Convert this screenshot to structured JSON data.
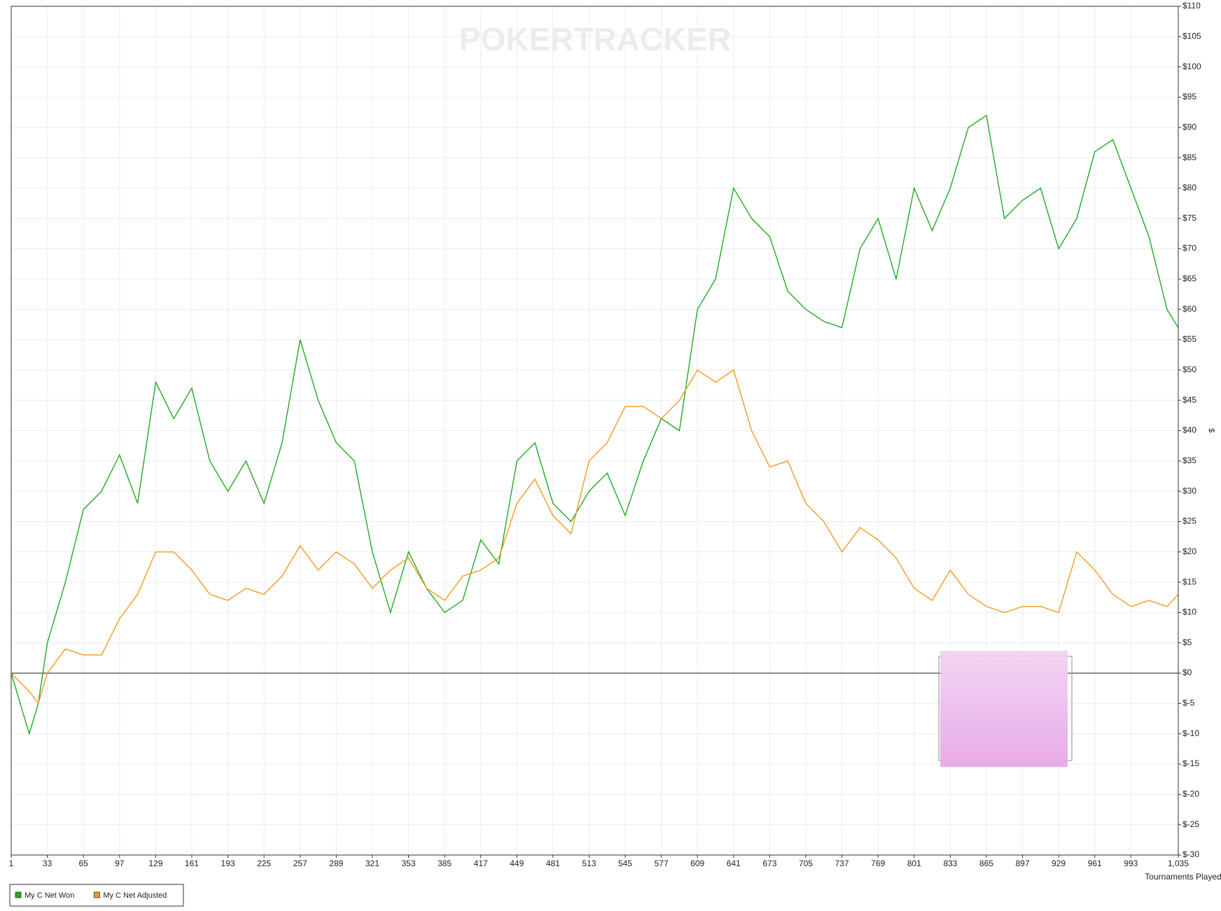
{
  "chart_data": {
    "type": "line",
    "watermark": "POKERTRACKER",
    "x_label": "Tournaments Played",
    "y_label": "$",
    "grid": true,
    "xlim": [
      1,
      1035
    ],
    "xticks": [
      1,
      33,
      65,
      97,
      129,
      161,
      193,
      225,
      257,
      289,
      321,
      353,
      385,
      417,
      449,
      481,
      513,
      545,
      577,
      609,
      641,
      673,
      705,
      737,
      769,
      801,
      833,
      865,
      897,
      929,
      961,
      993,
      {
        "value": 1035,
        "label": "1,035"
      }
    ],
    "ylim": [
      -30,
      110
    ],
    "yticks": [
      {
        "value": -30,
        "label": "$-30"
      },
      {
        "value": -25,
        "label": "$-25"
      },
      {
        "value": -20,
        "label": "$-20"
      },
      {
        "value": -15,
        "label": "$-15"
      },
      {
        "value": -10,
        "label": "$-10"
      },
      {
        "value": -5,
        "label": "$-5"
      },
      {
        "value": 0,
        "label": "$0"
      },
      {
        "value": 5,
        "label": "$5"
      },
      {
        "value": 10,
        "label": "$10"
      },
      {
        "value": 15,
        "label": "$15"
      },
      {
        "value": 20,
        "label": "$20"
      },
      {
        "value": 25,
        "label": "$25"
      },
      {
        "value": 30,
        "label": "$30"
      },
      {
        "value": 35,
        "label": "$35"
      },
      {
        "value": 40,
        "label": "$40"
      },
      {
        "value": 45,
        "label": "$45"
      },
      {
        "value": 50,
        "label": "$50"
      },
      {
        "value": 55,
        "label": "$55"
      },
      {
        "value": 60,
        "label": "$60"
      },
      {
        "value": 65,
        "label": "$65"
      },
      {
        "value": 70,
        "label": "$70"
      },
      {
        "value": 75,
        "label": "$75"
      },
      {
        "value": 80,
        "label": "$80"
      },
      {
        "value": 85,
        "label": "$85"
      },
      {
        "value": 90,
        "label": "$90"
      },
      {
        "value": 95,
        "label": "$95"
      },
      {
        "value": 100,
        "label": "$100"
      },
      {
        "value": 105,
        "label": "$105"
      },
      {
        "value": 110,
        "label": "$110"
      }
    ],
    "x": [
      1,
      17,
      25,
      33,
      49,
      65,
      81,
      97,
      113,
      129,
      145,
      161,
      177,
      193,
      209,
      225,
      241,
      257,
      273,
      289,
      305,
      321,
      337,
      353,
      369,
      385,
      401,
      417,
      433,
      449,
      465,
      481,
      497,
      513,
      529,
      545,
      561,
      577,
      593,
      609,
      625,
      641,
      657,
      673,
      689,
      705,
      721,
      737,
      753,
      769,
      785,
      801,
      817,
      833,
      849,
      865,
      881,
      897,
      913,
      929,
      945,
      961,
      977,
      993,
      1009,
      1025,
      1035
    ],
    "series": [
      {
        "name": "My C Net Won",
        "color": "#22aa22",
        "values": [
          0,
          -10,
          -5,
          5,
          15,
          27,
          30,
          36,
          28,
          48,
          42,
          47,
          35,
          30,
          35,
          28,
          38,
          55,
          45,
          38,
          35,
          20,
          10,
          20,
          14,
          10,
          12,
          22,
          18,
          35,
          38,
          28,
          25,
          30,
          33,
          26,
          35,
          42,
          40,
          60,
          65,
          80,
          75,
          72,
          63,
          60,
          58,
          57,
          70,
          75,
          65,
          80,
          73,
          80,
          90,
          92,
          75,
          78,
          80,
          70,
          75,
          86,
          88,
          80,
          72,
          60,
          57
        ]
      },
      {
        "name": "My C Net Adjusted",
        "color": "#f39a1e",
        "values": [
          0,
          -3,
          -5,
          0,
          4,
          3,
          3,
          9,
          13,
          20,
          20,
          17,
          13,
          12,
          14,
          13,
          16,
          21,
          17,
          20,
          18,
          14,
          17,
          19,
          14,
          12,
          16,
          17,
          19,
          28,
          32,
          26,
          23,
          35,
          38,
          44,
          44,
          42,
          45,
          50,
          48,
          50,
          40,
          34,
          35,
          28,
          25,
          20,
          24,
          22,
          19,
          14,
          12,
          17,
          13,
          11,
          10,
          11,
          11,
          10,
          20,
          17,
          13,
          11,
          12,
          11,
          13
        ]
      }
    ]
  }
}
